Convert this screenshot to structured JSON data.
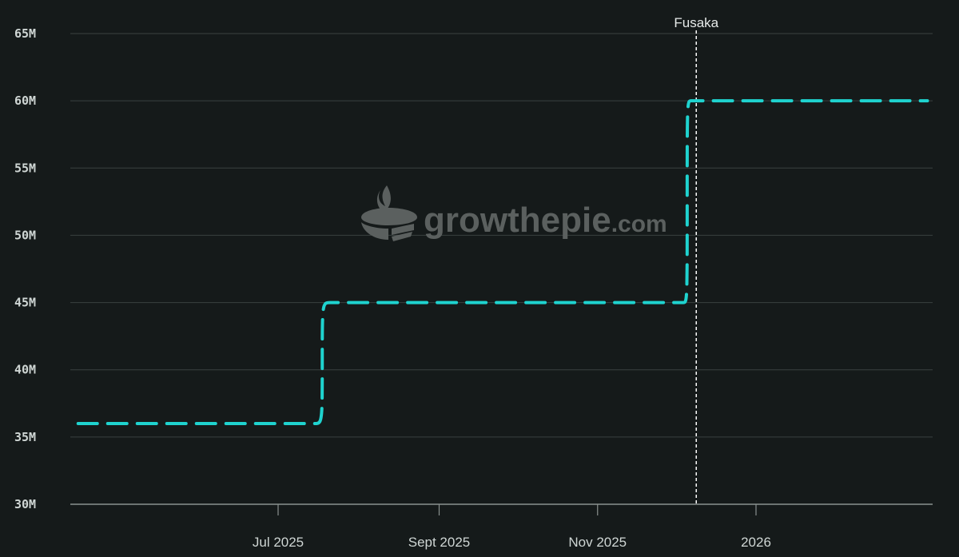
{
  "watermark": {
    "text": "growthepie",
    "suffix": ".com",
    "logo_icon": "pie-logo-icon"
  },
  "chart_data": {
    "type": "line",
    "title": "",
    "xlabel": "",
    "ylabel": "",
    "ylim": [
      30000000,
      65000000
    ],
    "xlim": [
      "2025-04-12",
      "2026-03-10"
    ],
    "grid": true,
    "y_ticks": [
      {
        "value": 30000000,
        "label": "30M"
      },
      {
        "value": 35000000,
        "label": "35M"
      },
      {
        "value": 40000000,
        "label": "40M"
      },
      {
        "value": 45000000,
        "label": "45M"
      },
      {
        "value": 50000000,
        "label": "50M"
      },
      {
        "value": 55000000,
        "label": "55M"
      },
      {
        "value": 60000000,
        "label": "60M"
      },
      {
        "value": 65000000,
        "label": "65M"
      }
    ],
    "x_ticks": [
      {
        "value": "2025-07-01",
        "label": "Jul 2025"
      },
      {
        "value": "2025-09-01",
        "label": "Sept 2025"
      },
      {
        "value": "2025-11-01",
        "label": "Nov 2025"
      },
      {
        "value": "2026-01-01",
        "label": "2026"
      }
    ],
    "series": [
      {
        "color": "#1fd3cf",
        "dashed": true,
        "x": [
          "2025-04-15",
          "2025-07-15",
          "2025-07-21",
          "2025-12-02",
          "2025-12-04",
          "2025-12-07",
          "2026-03-08"
        ],
        "y": [
          36000000,
          36000000,
          45000000,
          45000000,
          45000000,
          60000000,
          60000000
        ]
      }
    ],
    "annotations": [
      {
        "type": "vline",
        "x": "2025-12-09",
        "label": "Fusaka",
        "color": "#ffffff"
      }
    ]
  }
}
